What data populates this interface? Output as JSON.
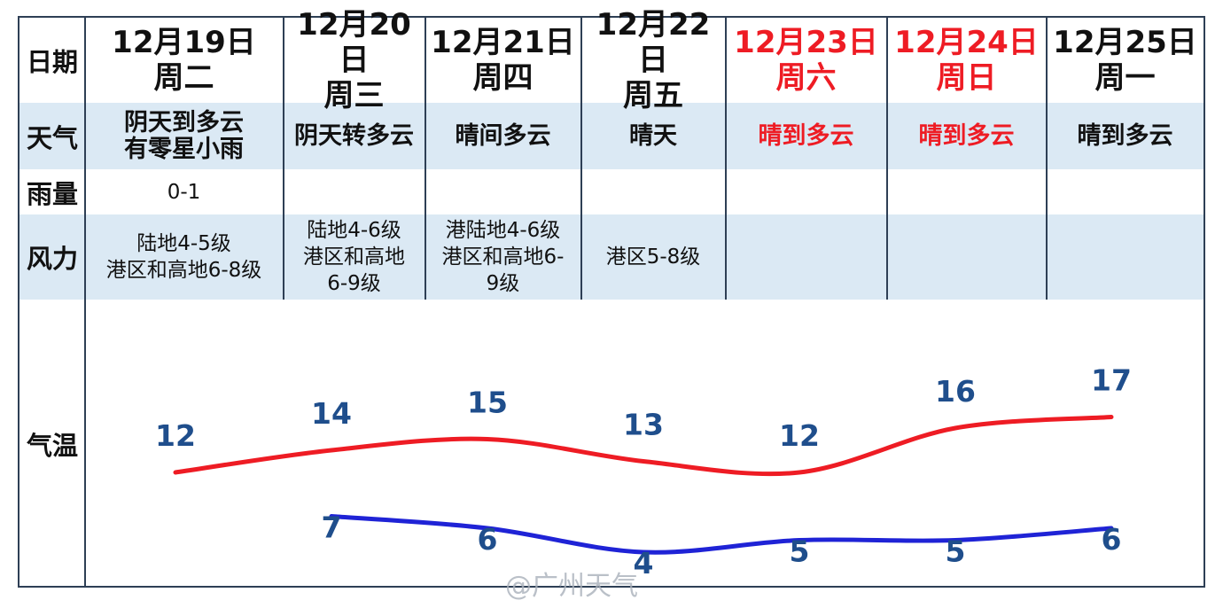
{
  "row_labels": {
    "date": "日期",
    "weather": "天气",
    "rain": "雨量",
    "wind": "风力",
    "temp": "气温"
  },
  "days": [
    {
      "date": "12月19日",
      "weekday": "周二",
      "weather": [
        "阴天到多云",
        "有零星小雨"
      ],
      "rain": "0-1",
      "wind": [
        "陆地4-5级",
        "港区和高地6-8级"
      ],
      "weekend": false
    },
    {
      "date": "12月20日",
      "weekday": "周三",
      "weather": [
        "阴天转多云"
      ],
      "rain": "",
      "wind": [
        "陆地4-6级",
        "港区和高地",
        "6-9级"
      ],
      "weekend": false
    },
    {
      "date": "12月21日",
      "weekday": "周四",
      "weather": [
        "晴间多云"
      ],
      "rain": "",
      "wind": [
        "港陆地4-6级",
        "港区和高地6-",
        "9级"
      ],
      "weekend": false
    },
    {
      "date": "12月22日",
      "weekday": "周五",
      "weather": [
        "晴天"
      ],
      "rain": "",
      "wind": [
        "港区5-8级"
      ],
      "weekend": false
    },
    {
      "date": "12月23日",
      "weekday": "周六",
      "weather": [
        "晴到多云"
      ],
      "rain": "",
      "wind": [],
      "weekend": true
    },
    {
      "date": "12月24日",
      "weekday": "周日",
      "weather": [
        "晴到多云"
      ],
      "rain": "",
      "wind": [],
      "weekend": true
    },
    {
      "date": "12月25日",
      "weekday": "周一",
      "weather": [
        "晴到多云"
      ],
      "rain": "",
      "wind": [],
      "weekend": false
    }
  ],
  "chart_data": {
    "type": "line",
    "categories": [
      "12月19日",
      "12月20日",
      "12月21日",
      "12月22日",
      "12月23日",
      "12月24日",
      "12月25日"
    ],
    "series": [
      {
        "values": [
          12,
          14,
          15,
          13,
          12,
          16,
          17
        ],
        "color": "#ee1c24"
      },
      {
        "values": [
          null,
          7,
          6,
          4,
          5,
          5,
          6
        ],
        "color": "#1f23d6"
      }
    ],
    "label_color": "#1f4e8c",
    "ylabel": "气温"
  },
  "watermark": "@广州天气",
  "colors": {
    "red": "#ee1c24",
    "blue": "#1f23d6",
    "band": "#dbe9f4",
    "border": "#2e3f55"
  }
}
